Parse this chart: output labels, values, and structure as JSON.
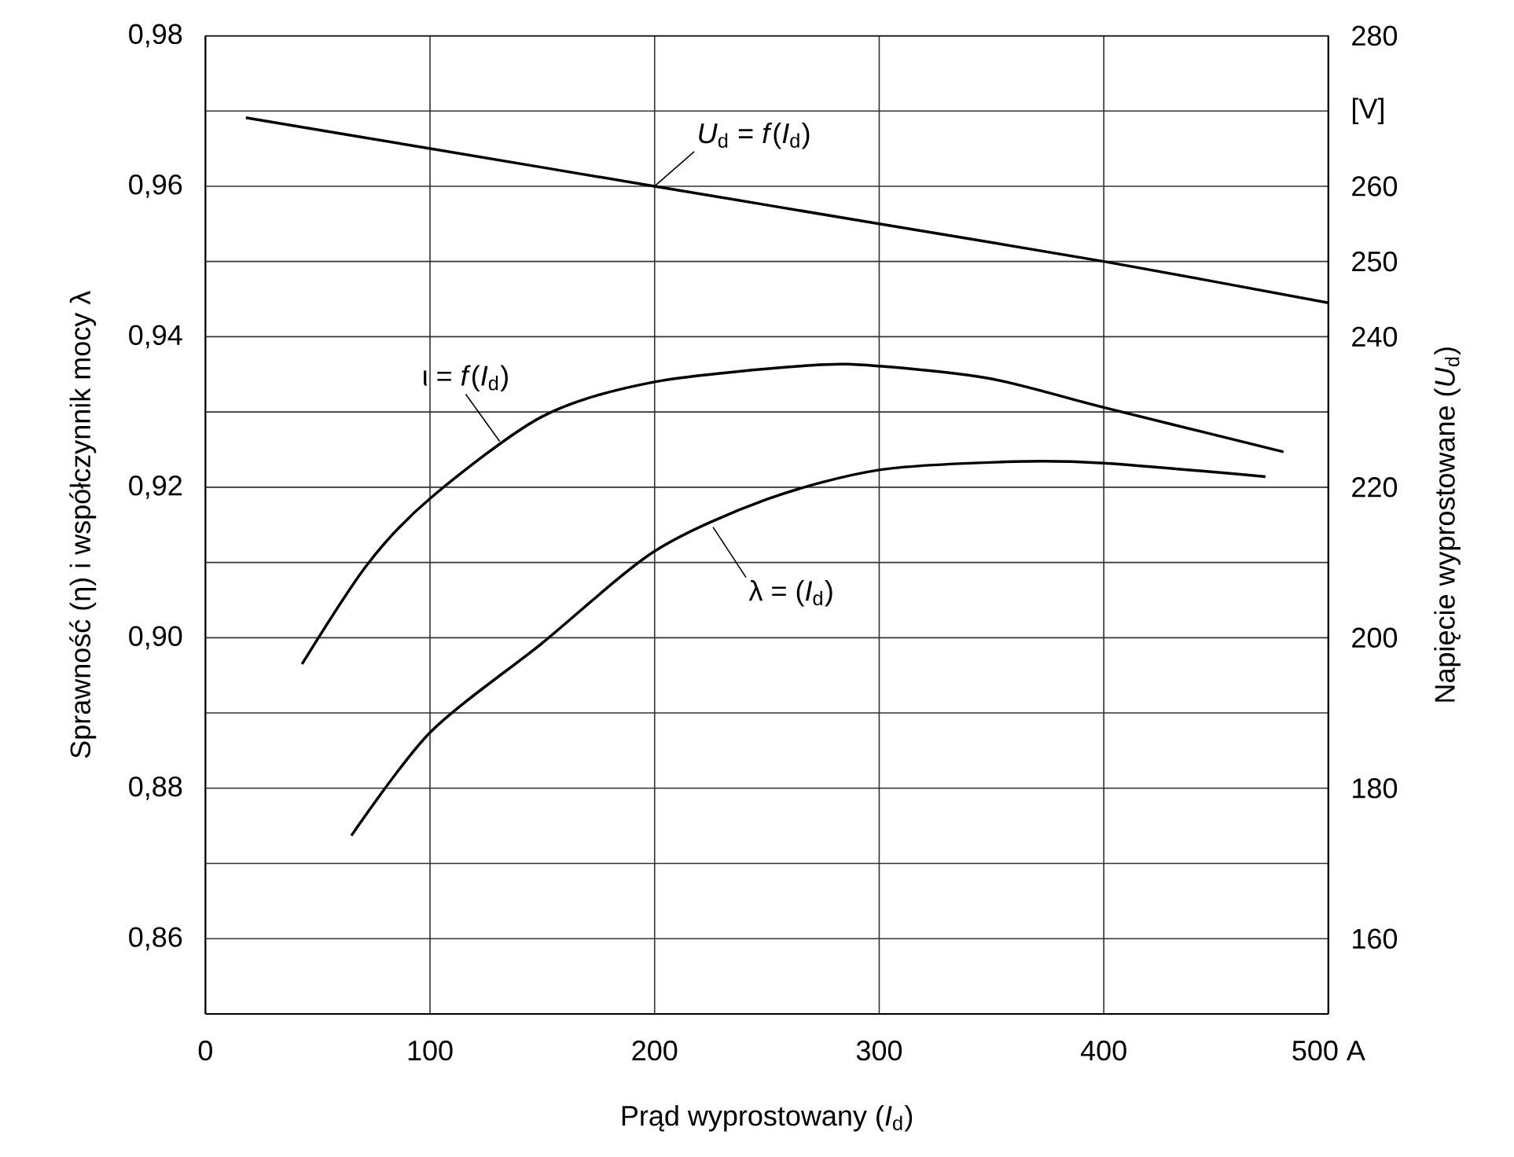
{
  "chart_data": {
    "type": "line",
    "xlabel": "Prąd wyprostowany (*I*$_{d}$)",
    "ylabel": "Sprawność (η) i współczynnik mocy λ",
    "y2label": "Napięcie wyprostowane (*U*$_{d}$)",
    "xlim": [
      0,
      500
    ],
    "xticks": [
      0,
      100,
      200,
      300,
      400,
      {
        "value": 500,
        "label": "500 A"
      }
    ],
    "ylim": [
      0.85,
      0.98
    ],
    "yticks": [
      {
        "value": 0.86,
        "label": "0,86"
      },
      {
        "value": 0.87,
        "label": null
      },
      {
        "value": 0.88,
        "label": "0,88"
      },
      {
        "value": 0.89,
        "label": null
      },
      {
        "value": 0.9,
        "label": "0,90"
      },
      {
        "value": 0.91,
        "label": null
      },
      {
        "value": 0.92,
        "label": "0,92"
      },
      {
        "value": 0.93,
        "label": null
      },
      {
        "value": 0.94,
        "label": "0,94"
      },
      {
        "value": 0.95,
        "label": null
      },
      {
        "value": 0.96,
        "label": "0,96"
      },
      {
        "value": 0.97,
        "label": null
      },
      {
        "value": 0.98,
        "label": "0,98"
      }
    ],
    "y2lim": [
      150,
      280
    ],
    "y2ticks": [
      160,
      180,
      200,
      220,
      240,
      250,
      260,
      {
        "value": 270,
        "label": "[V]"
      },
      280
    ],
    "grid": true,
    "marker": "none",
    "line_style": "solid",
    "series": [
      {
        "color": "#000000",
        "axis": "y2",
        "x": [
          18,
          100,
          200,
          300,
          400,
          500
        ],
        "values": [
          269.1,
          265,
          260,
          255,
          250,
          244.5
        ]
      },
      {
        "color": "#000000",
        "x": [
          43,
          72,
          100,
          150,
          200,
          270,
          300,
          350,
          400,
          480
        ],
        "values": [
          0.8965,
          0.9097,
          0.9185,
          0.9294,
          0.934,
          0.9362,
          0.9361,
          0.9344,
          0.9306,
          0.9247
        ]
      },
      {
        "color": "#000000",
        "x": [
          65,
          100,
          150,
          200,
          250,
          300,
          360,
          400,
          472
        ],
        "values": [
          0.8737,
          0.8874,
          0.8993,
          0.9115,
          0.9184,
          0.9223,
          0.9234,
          0.9232,
          0.9214
        ]
      }
    ],
    "annotations": [
      {
        "text": "*U*$_{d}$ = *f*(*I*$_{d}$)",
        "x": 200,
        "y": 0.96
      },
      {
        "text": "ι = *f*(*I*$_{d}$)",
        "x": 131,
        "y": 0.9261
      },
      {
        "text": "λ = (*I*$_{d}$)",
        "x": 226,
        "y": 0.9147
      }
    ]
  }
}
